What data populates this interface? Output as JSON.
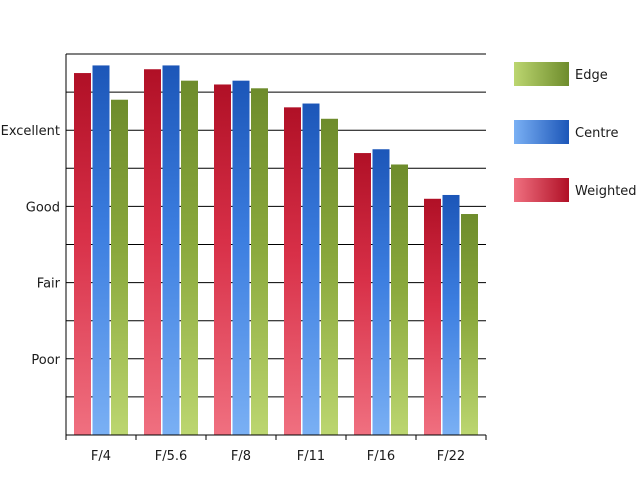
{
  "chart_data": {
    "type": "bar",
    "categories": [
      "F/4",
      "F/5.6",
      "F/8",
      "F/11",
      "F/16",
      "F/22"
    ],
    "ylim": [
      0,
      10
    ],
    "y_ticks": [
      {
        "value": 2,
        "label": "Poor"
      },
      {
        "value": 4,
        "label": "Fair"
      },
      {
        "value": 6,
        "label": "Good"
      },
      {
        "value": 8,
        "label": "Excellent"
      }
    ],
    "grid": true,
    "legend_position": "right",
    "series": [
      {
        "name": "Weighted",
        "values": [
          9.5,
          9.6,
          9.2,
          8.6,
          7.4,
          6.2
        ],
        "color": "#c8102e"
      },
      {
        "name": "Centre",
        "values": [
          9.7,
          9.7,
          9.3,
          8.7,
          7.5,
          6.3
        ],
        "color": "#2a6ad0"
      },
      {
        "name": "Edge",
        "values": [
          8.8,
          9.3,
          9.1,
          8.3,
          7.1,
          5.8
        ],
        "color": "#7a9a30"
      }
    ],
    "legend_order": [
      "Edge",
      "Centre",
      "Weighted"
    ]
  }
}
